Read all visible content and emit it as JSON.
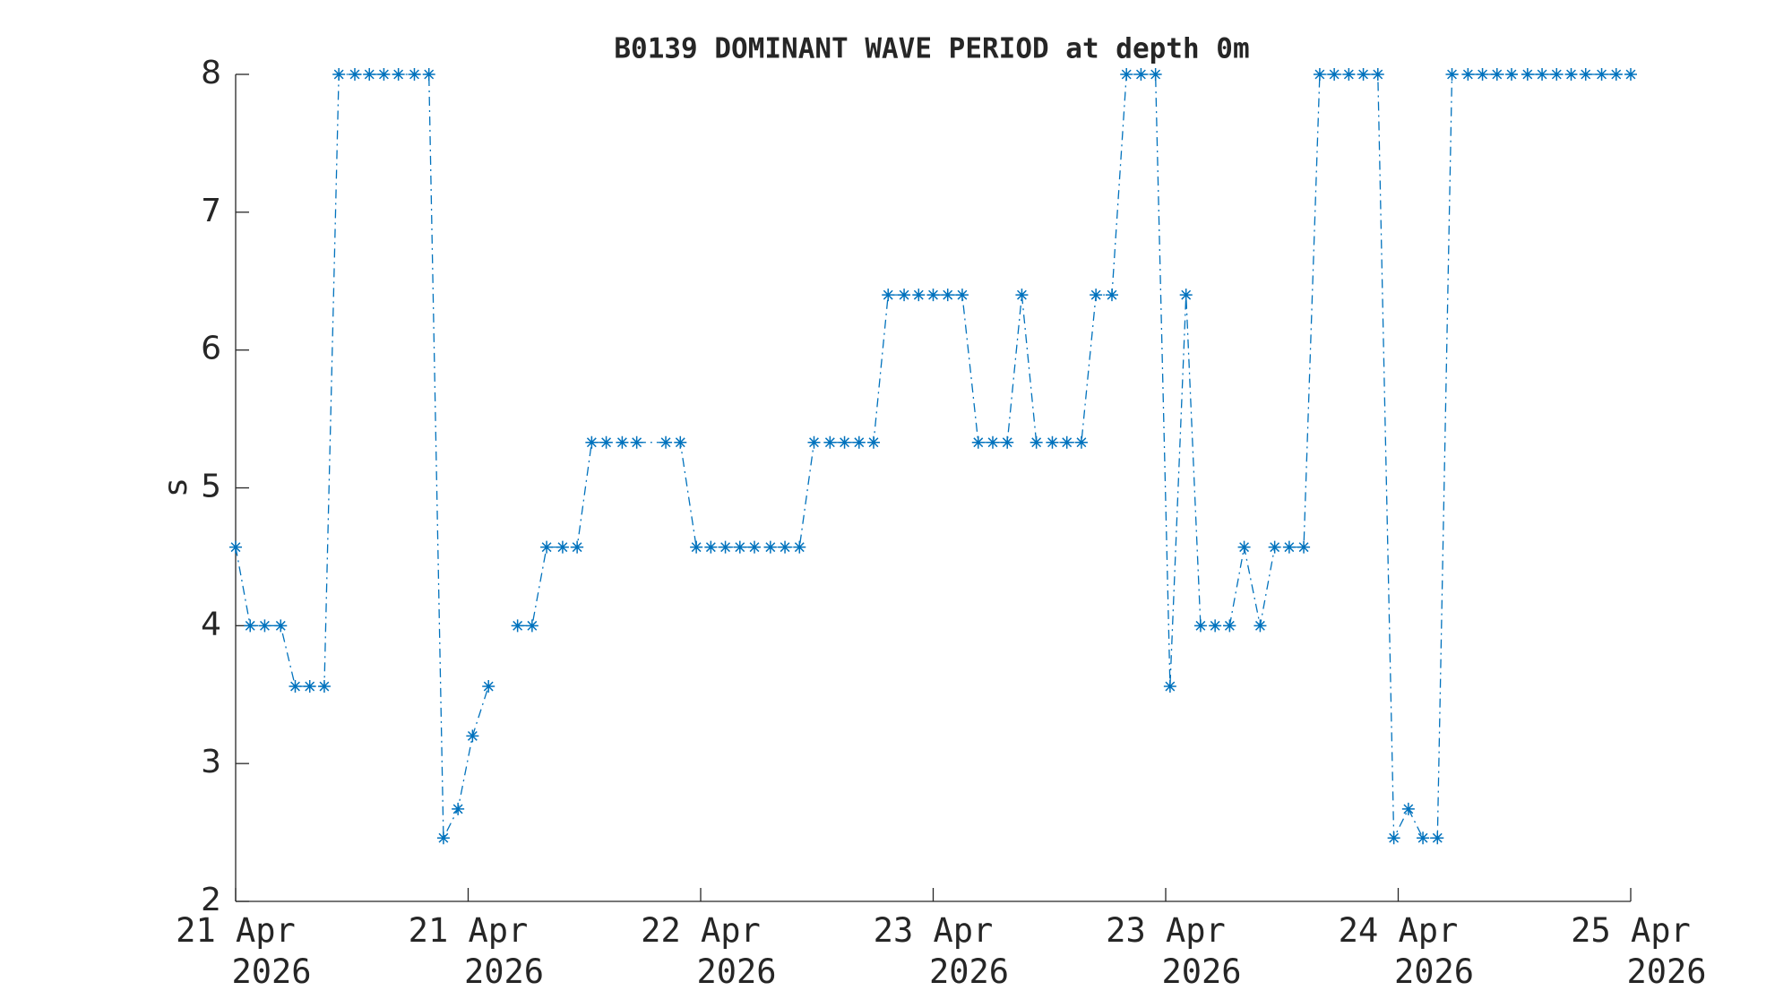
{
  "chart_data": {
    "type": "line",
    "title": "B0139 DOMINANT WAVE PERIOD at depth 0m",
    "ylabel": "s",
    "x": [
      0,
      1.0,
      2.0,
      3.1,
      4.1,
      5.1,
      6.1,
      7.1,
      8.2,
      9.2,
      10.2,
      11.2,
      12.3,
      13.3,
      14.3,
      15.3,
      16.3,
      17.4,
      18.4,
      19.4,
      20.4,
      21.4,
      22.5,
      23.5,
      24.5,
      25.5,
      26.6,
      27.6,
      29.6,
      30.6,
      31.7,
      32.7,
      33.7,
      34.7,
      35.7,
      36.8,
      37.8,
      38.8,
      39.8,
      40.9,
      41.9,
      42.9,
      43.9,
      44.9,
      46.0,
      47.0,
      48.0,
      49.0,
      50.0,
      51.1,
      52.1,
      53.1,
      54.1,
      55.1,
      56.2,
      57.2,
      58.2,
      59.2,
      60.3,
      61.3,
      62.3,
      63.3,
      64.3,
      65.4,
      66.4,
      67.4,
      68.4,
      69.4,
      70.5,
      71.5,
      72.5,
      73.5,
      74.6,
      75.6,
      76.6,
      77.6,
      78.6,
      79.7,
      80.7,
      81.7,
      82.7,
      83.7,
      84.8,
      85.8,
      86.8,
      87.8,
      88.9,
      89.9,
      90.9,
      91.9,
      92.9,
      94.0,
      95.0,
      96.0
    ],
    "series": [
      {
        "color": "#0072bd",
        "values": [
          4.57,
          4,
          4,
          4,
          3.56,
          3.56,
          3.56,
          8,
          8,
          8,
          8,
          8,
          8,
          8,
          2.46,
          2.67,
          3.2,
          3.56,
          null,
          4,
          4,
          4.57,
          4.57,
          4.57,
          5.33,
          5.33,
          5.33,
          5.33,
          5.33,
          5.33,
          4.57,
          4.57,
          4.57,
          4.57,
          4.57,
          4.57,
          4.57,
          4.57,
          5.33,
          5.33,
          5.33,
          5.33,
          5.33,
          6.4,
          6.4,
          6.4,
          6.4,
          6.4,
          6.4,
          5.33,
          5.33,
          5.33,
          6.4,
          5.33,
          5.33,
          5.33,
          5.33,
          6.4,
          6.4,
          8,
          8,
          8,
          3.56,
          6.4,
          4,
          4,
          4,
          4.57,
          4,
          4.57,
          4.57,
          4.57,
          8,
          8,
          8,
          8,
          8,
          2.46,
          2.67,
          2.46,
          2.46,
          8,
          8,
          8,
          8,
          8,
          8,
          8,
          8,
          8,
          8,
          8,
          8,
          8
        ]
      }
    ],
    "xlim": [
      0,
      96
    ],
    "xticks": [
      {
        "value": 0,
        "label": [
          "21 Apr",
          "2026"
        ]
      },
      {
        "value": 16,
        "label": [
          "21 Apr",
          "2026"
        ]
      },
      {
        "value": 32,
        "label": [
          "22 Apr",
          "2026"
        ]
      },
      {
        "value": 48,
        "label": [
          "23 Apr",
          "2026"
        ]
      },
      {
        "value": 64,
        "label": [
          "23 Apr",
          "2026"
        ]
      },
      {
        "value": 80,
        "label": [
          "24 Apr",
          "2026"
        ]
      },
      {
        "value": 96,
        "label": [
          "25 Apr",
          "2026"
        ]
      }
    ],
    "ylim": [
      2,
      8
    ],
    "yticks": [
      2,
      3,
      4,
      5,
      6,
      7,
      8
    ],
    "marker": "asterisk",
    "line_style": "dash-dot",
    "grid": false
  }
}
